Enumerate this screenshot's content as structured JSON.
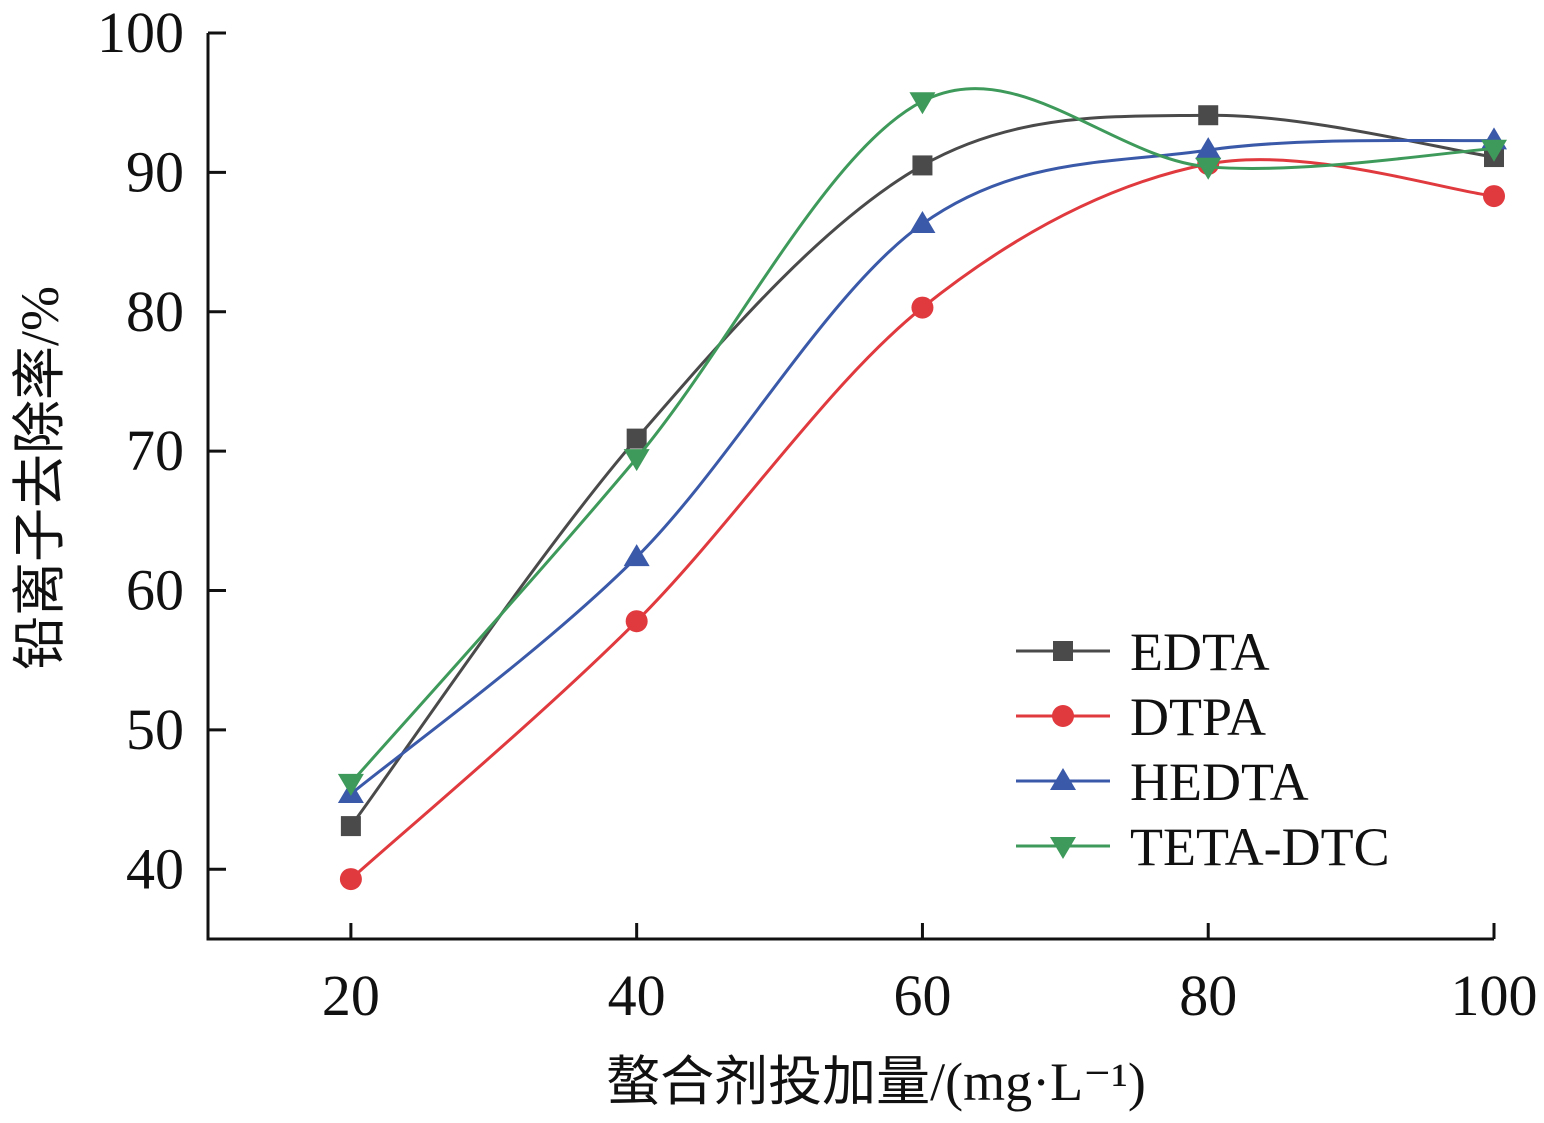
{
  "chart_data": {
    "type": "line",
    "smooth": true,
    "x": [
      20,
      40,
      60,
      80,
      100
    ],
    "xlim": [
      10,
      100
    ],
    "ylim": [
      35,
      100
    ],
    "xticks": [
      20,
      40,
      60,
      80,
      100
    ],
    "yticks": [
      40,
      50,
      60,
      70,
      80,
      90,
      100
    ],
    "xlabel": "螯合剂投加量/(mg·L⁻¹)",
    "ylabel": "铅离子去除率/%",
    "grid": false,
    "legend_position": "bottom-right",
    "series": [
      {
        "name": "EDTA",
        "marker": "square",
        "color": "#4a4a4a",
        "values": [
          43.1,
          70.9,
          90.5,
          94.1,
          91.1
        ]
      },
      {
        "name": "DTPA",
        "marker": "circle",
        "color": "#e0393e",
        "values": [
          39.3,
          57.8,
          80.3,
          90.6,
          88.3
        ]
      },
      {
        "name": "HEDTA",
        "marker": "triangle-up",
        "color": "#3a59a8",
        "values": [
          45.4,
          62.4,
          86.3,
          91.6,
          92.3
        ]
      },
      {
        "name": "TETA-DTC",
        "marker": "triangle-down",
        "color": "#3e9a5a",
        "values": [
          46.2,
          69.5,
          95.1,
          90.4,
          91.7
        ]
      }
    ]
  }
}
